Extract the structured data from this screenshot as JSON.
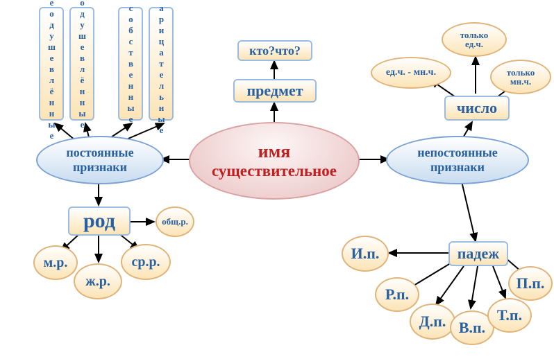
{
  "colors": {
    "rect_border": "#9bbce0",
    "rect_fill_top": "#ffffff",
    "rect_fill_bottom": "#fce4b6",
    "ellipse_border": "#7aa2d6",
    "ellipse_fill_top": "#ffffff",
    "ellipse_fill_bottom": "#c8dcf0",
    "center_border": "#d8a2a2",
    "center_fill_top": "#fdf6f6",
    "center_fill_bottom": "#e9c0c0",
    "circle_border": "#e0b47a",
    "circle_fill_top": "#ffffff",
    "circle_fill_bottom": "#fce4b6",
    "text_blue": "#2860a0",
    "text_red": "#c22020",
    "text_dark": "#1a3b66",
    "arrow": "#000000"
  },
  "center": {
    "label": "имя\nсущест­вительное",
    "line1": "имя",
    "line2": "существительное"
  },
  "predmet": {
    "label": "предмет"
  },
  "kto_chto": {
    "label": "кто?что?"
  },
  "permanent": {
    "label": "постоянные признаки",
    "line1": "постоянные",
    "line2": "признаки"
  },
  "nonpermanent": {
    "label": "непостоянные признаки",
    "line1": "непостоянные",
    "line2": "признаки"
  },
  "verticals": [
    {
      "label": "неодушевлённые"
    },
    {
      "label": "одушевлённые"
    },
    {
      "label": "собственные"
    },
    {
      "label": "нарицательные"
    }
  ],
  "rod": {
    "label": "род"
  },
  "genders": {
    "mr": "м.р.",
    "zhr": "ж.р.",
    "srr": "ср.р.",
    "common": "общ.р."
  },
  "number": {
    "label": "число"
  },
  "number_opts": {
    "both": "ед.ч. - мн.ч.",
    "only_sg": "только ед.ч.",
    "only_pl": "только мн.ч."
  },
  "case": {
    "label": "падеж"
  },
  "cases": {
    "ip": "И.п.",
    "rp": "Р.п.",
    "dp": "Д.п.",
    "vp": "В.п.",
    "tp": "Т.п.",
    "pp": "П.п."
  }
}
